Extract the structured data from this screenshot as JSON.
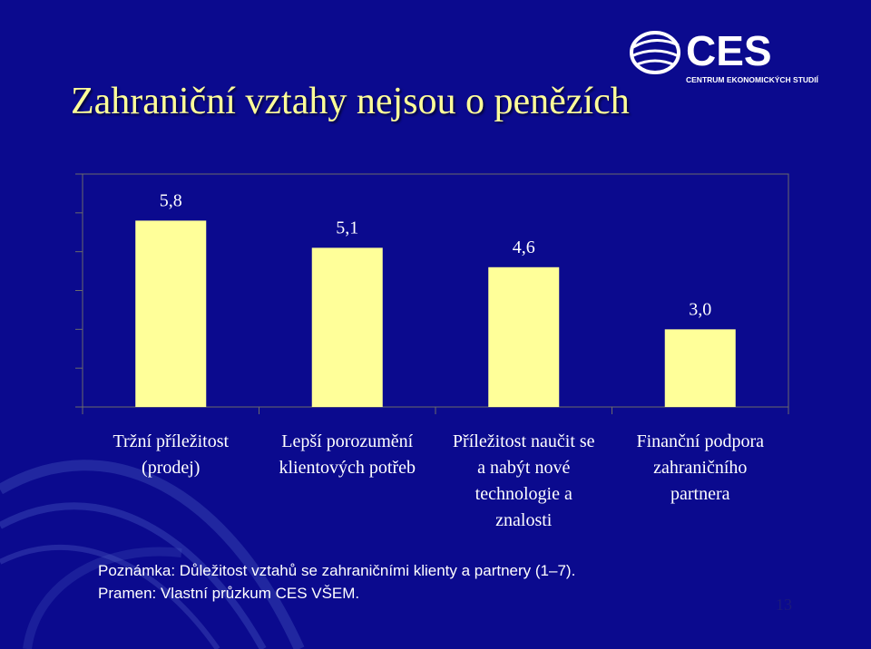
{
  "slide": {
    "title": "Zahraniční vztahy nejsou o penězích",
    "note": "Poznámka: Důležitost vztahů se zahraničními klienty a partnery (1–7).",
    "source": "Pramen: Vlastní průzkum CES VŠEM.",
    "page_number": "13"
  },
  "logo": {
    "text": "CES",
    "subtitle": "CENTRUM EKONOMICKÝCH STUDIÍ"
  },
  "colors": {
    "background": "#0b0a8e",
    "title": "#ffff99",
    "bar": "#ffff99",
    "text": "#ffffff",
    "axis": "#6b6b6b"
  },
  "chart_data": {
    "type": "bar",
    "categories": [
      [
        "Tržní příležitost",
        "(prodej)"
      ],
      [
        "Lepší porozumění",
        "klientových potřeb"
      ],
      [
        "Příležitost naučit se",
        "a nabýt nové",
        "technologie a",
        "znalosti"
      ],
      [
        "Finanční podpora",
        "zahraničního",
        "partnera"
      ]
    ],
    "values": [
      5.8,
      5.1,
      4.6,
      3.0
    ],
    "value_labels": [
      "5,8",
      "5,1",
      "4,6",
      "3,0"
    ],
    "ylim": [
      1,
      7
    ],
    "y_ticks": [
      1,
      2,
      3,
      4,
      5,
      6,
      7
    ],
    "grid": false,
    "title": "",
    "xlabel": "",
    "ylabel": ""
  }
}
